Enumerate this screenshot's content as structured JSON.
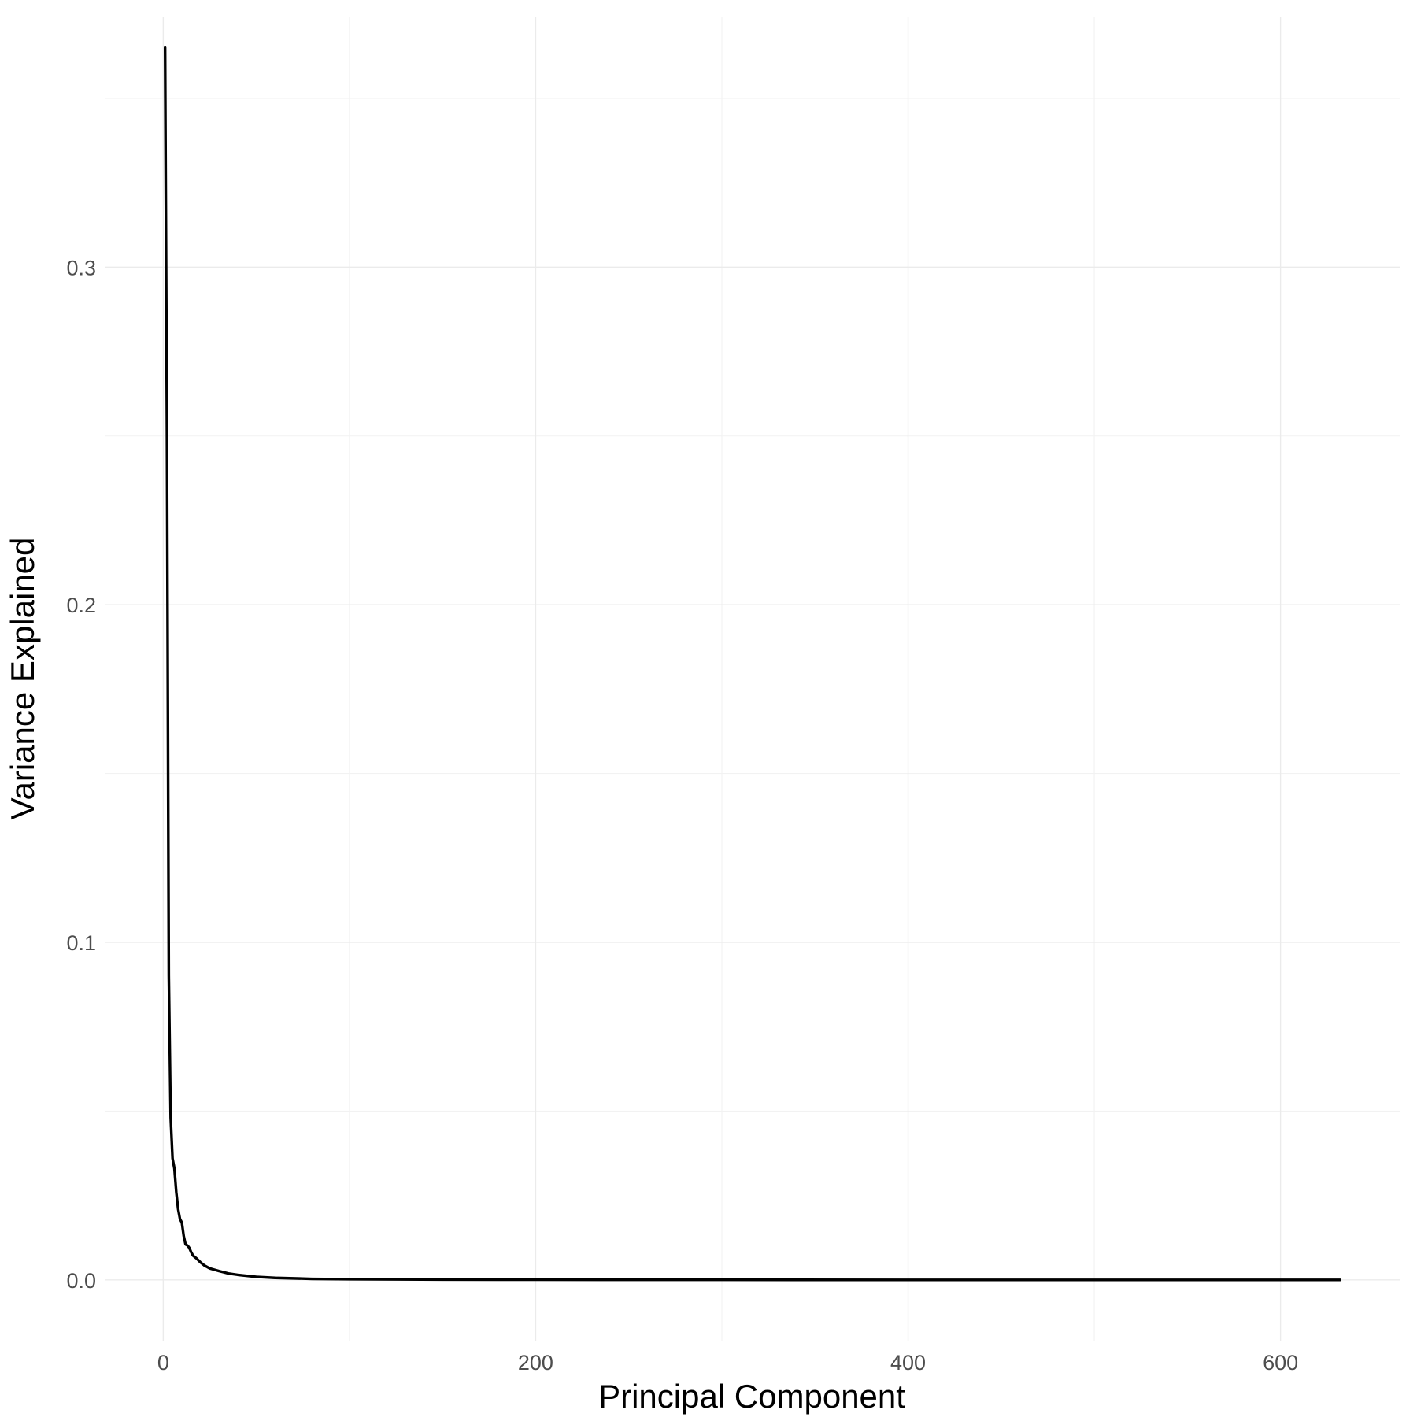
{
  "chart_data": {
    "type": "line",
    "title": "",
    "xlabel": "Principal Component",
    "ylabel": "Variance Explained",
    "xlim": [
      -31,
      664
    ],
    "ylim": [
      -0.018,
      0.374
    ],
    "x_ticks": [
      0,
      200,
      400,
      600
    ],
    "x_tick_labels": [
      "0",
      "200",
      "400",
      "600"
    ],
    "y_ticks": [
      0.0,
      0.1,
      0.2,
      0.3
    ],
    "y_tick_labels": [
      "0.0",
      "0.1",
      "0.2",
      "0.3"
    ],
    "x_minor_ticks": [
      100,
      300,
      500
    ],
    "y_minor_ticks": [
      0.05,
      0.15,
      0.25,
      0.35
    ],
    "grid": true,
    "legend": "none",
    "line_color": "#000000",
    "series": [
      {
        "x": [
          1,
          2,
          3,
          4,
          5,
          6,
          7,
          8,
          9,
          10,
          11,
          12,
          13,
          14,
          15,
          16,
          18,
          20,
          22,
          25,
          30,
          35,
          40,
          50,
          60,
          80,
          100,
          150,
          200,
          300,
          400,
          500,
          600,
          632
        ],
        "y": [
          0.365,
          0.25,
          0.09,
          0.048,
          0.036,
          0.033,
          0.026,
          0.021,
          0.018,
          0.017,
          0.013,
          0.0105,
          0.0102,
          0.0095,
          0.0082,
          0.0072,
          0.0063,
          0.0052,
          0.0043,
          0.0034,
          0.0026,
          0.0019,
          0.0015,
          0.0009,
          0.0006,
          0.0003,
          0.0002,
          0.0001,
          5e-05,
          2e-05,
          1e-05,
          5e-06,
          2e-06,
          1e-06
        ]
      }
    ]
  }
}
